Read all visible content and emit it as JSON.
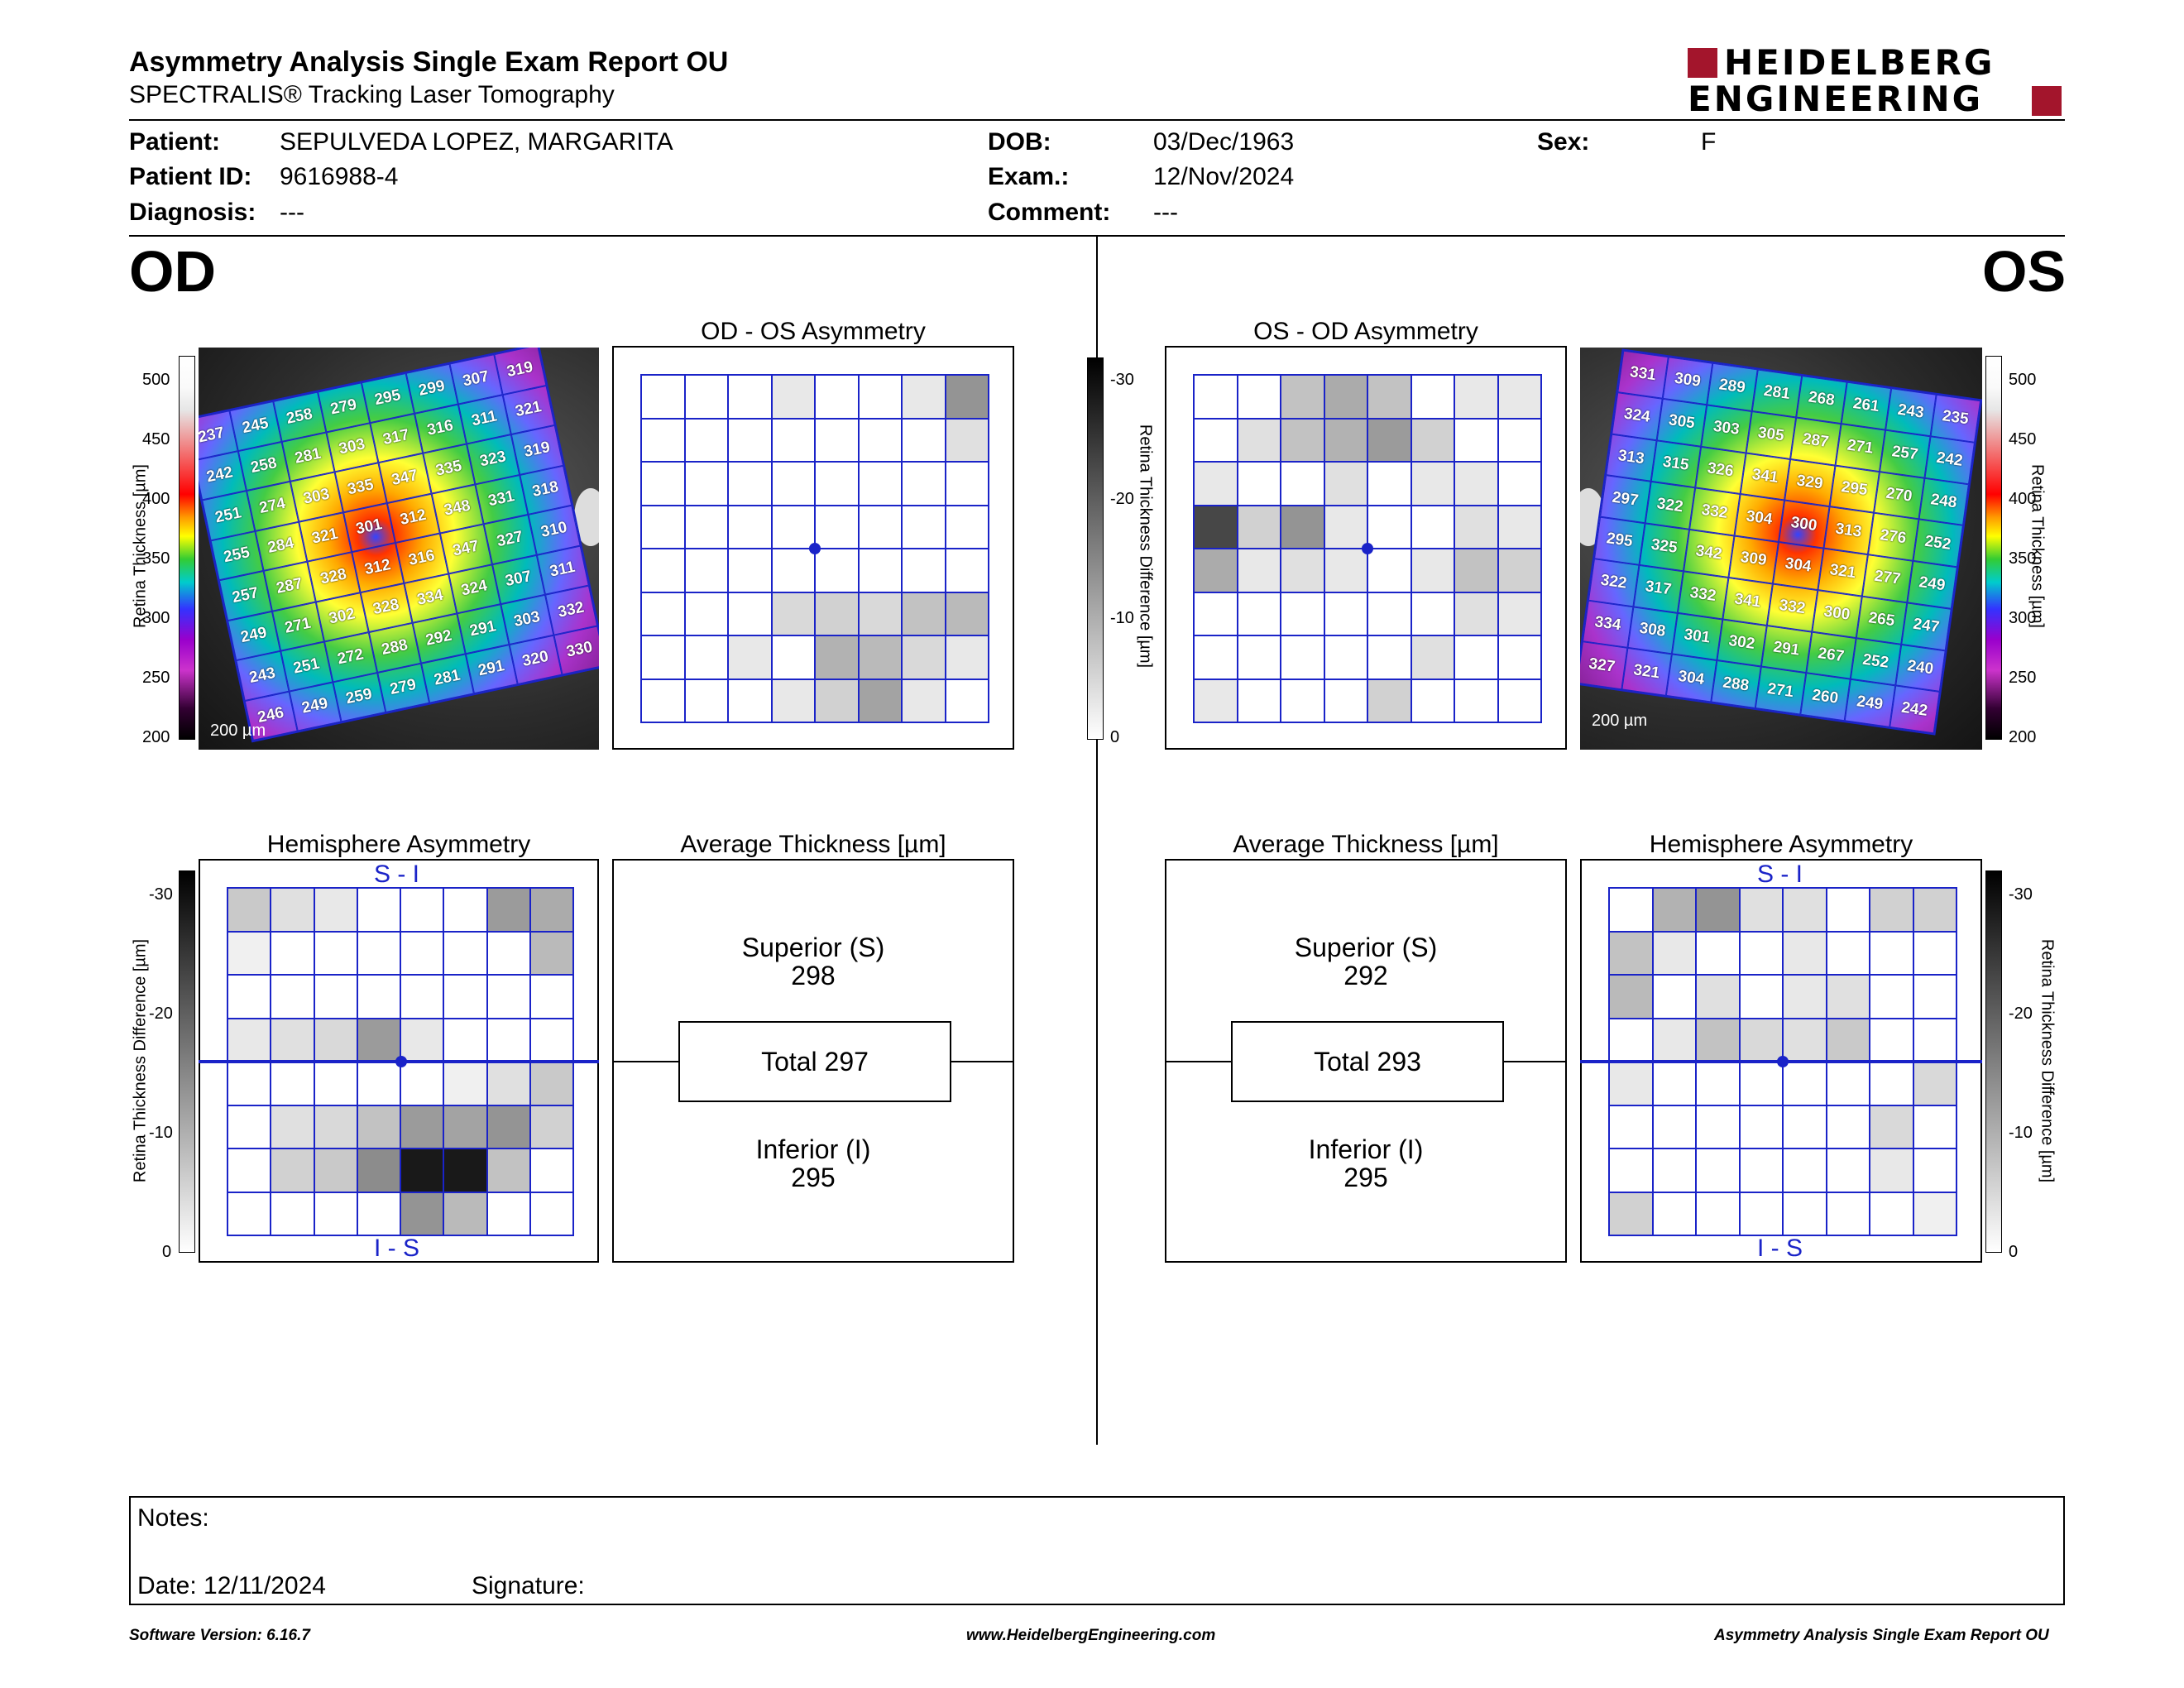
{
  "header": {
    "title": "Asymmetry Analysis Single Exam Report OU",
    "subtitle": "SPECTRALIS® Tracking Laser Tomography",
    "logo_line1": "HEIDELBERG",
    "logo_line2": "ENGINEERING",
    "logo_color": "#a3152c"
  },
  "patient": {
    "patient_label": "Patient:",
    "patient_value": "SEPULVEDA LOPEZ, MARGARITA",
    "id_label": "Patient ID:",
    "id_value": "9616988-4",
    "diag_label": "Diagnosis:",
    "diag_value": "---",
    "dob_label": "DOB:",
    "dob_value": "03/Dec/1963",
    "exam_label": "Exam.:",
    "exam_value": "12/Nov/2024",
    "comment_label": "Comment:",
    "comment_value": "---",
    "sex_label": "Sex:",
    "sex_value": "F"
  },
  "od": {
    "eye_label": "OD",
    "asym_title": "OD - OS Asymmetry",
    "hemi_title": "Hemisphere Asymmetry",
    "avg_title": "Average Thickness [µm]",
    "superior_label": "Superior (S)",
    "superior_value": "298",
    "total": "Total 297",
    "inferior_label": "Inferior (I)",
    "inferior_value": "295",
    "scale_label": "200 µm",
    "thickness_grid": [
      [
        "237",
        "245",
        "258",
        "279",
        "295",
        "299",
        "307",
        "319"
      ],
      [
        "242",
        "258",
        "281",
        "303",
        "317",
        "316",
        "311",
        "321"
      ],
      [
        "251",
        "274",
        "303",
        "335",
        "347",
        "335",
        "323",
        "319"
      ],
      [
        "255",
        "284",
        "321",
        "301",
        "312",
        "348",
        "331",
        "318"
      ],
      [
        "257",
        "287",
        "328",
        "312",
        "316",
        "347",
        "327",
        "310"
      ],
      [
        "249",
        "271",
        "302",
        "328",
        "334",
        "324",
        "307",
        "311"
      ],
      [
        "243",
        "251",
        "272",
        "288",
        "292",
        "291",
        "303",
        "332"
      ],
      [
        "246",
        "249",
        "259",
        "279",
        "281",
        "291",
        "320",
        "330"
      ]
    ],
    "asym_grid": [
      [
        0,
        0,
        0,
        3,
        0,
        0,
        3,
        14
      ],
      [
        0,
        0,
        0,
        0,
        0,
        0,
        0,
        4
      ],
      [
        0,
        0,
        0,
        0,
        0,
        0,
        0,
        0
      ],
      [
        0,
        0,
        0,
        0,
        0,
        0,
        0,
        0
      ],
      [
        0,
        0,
        0,
        0,
        0,
        0,
        0,
        0
      ],
      [
        0,
        0,
        0,
        5,
        6,
        5,
        8,
        9
      ],
      [
        0,
        0,
        3,
        0,
        10,
        9,
        5,
        3
      ],
      [
        0,
        0,
        0,
        3,
        6,
        12,
        3,
        0
      ]
    ],
    "hemi_grid": [
      [
        7,
        4,
        3,
        0,
        0,
        0,
        13,
        11
      ],
      [
        2,
        0,
        0,
        0,
        0,
        0,
        0,
        9
      ],
      [
        0,
        0,
        0,
        0,
        0,
        0,
        0,
        0
      ],
      [
        3,
        4,
        5,
        13,
        3,
        0,
        0,
        0
      ],
      [
        0,
        0,
        0,
        0,
        0,
        2,
        4,
        7
      ],
      [
        0,
        4,
        5,
        8,
        13,
        12,
        14,
        6
      ],
      [
        0,
        6,
        7,
        15,
        30,
        30,
        8,
        0
      ],
      [
        0,
        0,
        0,
        0,
        14,
        9,
        0,
        0
      ]
    ]
  },
  "os": {
    "eye_label": "OS",
    "asym_title": "OS - OD Asymmetry",
    "hemi_title": "Hemisphere Asymmetry",
    "avg_title": "Average Thickness [µm]",
    "superior_label": "Superior (S)",
    "superior_value": "292",
    "total": "Total 293",
    "inferior_label": "Inferior (I)",
    "inferior_value": "295",
    "scale_label": "200 µm",
    "thickness_grid": [
      [
        "331",
        "309",
        "289",
        "281",
        "268",
        "261",
        "243",
        "235"
      ],
      [
        "324",
        "305",
        "303",
        "305",
        "287",
        "271",
        "257",
        "242"
      ],
      [
        "313",
        "315",
        "326",
        "341",
        "329",
        "295",
        "270",
        "248"
      ],
      [
        "297",
        "322",
        "332",
        "304",
        "300",
        "313",
        "276",
        "252"
      ],
      [
        "295",
        "325",
        "342",
        "309",
        "304",
        "321",
        "277",
        "249"
      ],
      [
        "322",
        "317",
        "332",
        "341",
        "332",
        "300",
        "265",
        "247"
      ],
      [
        "334",
        "308",
        "301",
        "302",
        "291",
        "267",
        "252",
        "240"
      ],
      [
        "327",
        "321",
        "304",
        "288",
        "271",
        "260",
        "249",
        "242"
      ]
    ],
    "asym_grid": [
      [
        0,
        0,
        8,
        11,
        8,
        0,
        3,
        3
      ],
      [
        0,
        4,
        8,
        10,
        13,
        6,
        0,
        0
      ],
      [
        3,
        0,
        0,
        4,
        0,
        3,
        3,
        0
      ],
      [
        24,
        6,
        14,
        3,
        0,
        0,
        4,
        3
      ],
      [
        11,
        3,
        4,
        3,
        0,
        3,
        8,
        6
      ],
      [
        0,
        0,
        0,
        0,
        0,
        0,
        4,
        3
      ],
      [
        0,
        0,
        0,
        0,
        0,
        4,
        0,
        0
      ],
      [
        3,
        0,
        0,
        0,
        6,
        0,
        0,
        0
      ]
    ],
    "hemi_grid": [
      [
        0,
        10,
        14,
        4,
        4,
        0,
        6,
        6
      ],
      [
        8,
        3,
        0,
        0,
        3,
        0,
        0,
        0
      ],
      [
        9,
        0,
        4,
        0,
        3,
        4,
        0,
        0
      ],
      [
        0,
        3,
        8,
        5,
        4,
        7,
        0,
        0
      ],
      [
        3,
        0,
        0,
        0,
        0,
        0,
        0,
        5
      ],
      [
        0,
        0,
        0,
        0,
        0,
        0,
        5,
        0
      ],
      [
        0,
        0,
        0,
        0,
        0,
        0,
        3,
        0
      ],
      [
        6,
        0,
        0,
        0,
        0,
        0,
        0,
        2
      ]
    ]
  },
  "hemi_labels": {
    "top": "S - I",
    "bottom": "I - S"
  },
  "axes": {
    "thickness_label": "Retina  Thickness [µm]",
    "thickness_ticks": [
      "500",
      "450",
      "400",
      "350",
      "300",
      "250",
      "200"
    ],
    "diff_label": "Retina Thickness Difference [µm]",
    "diff_ticks": [
      "-30",
      "-20",
      "-10",
      "0"
    ]
  },
  "notes": {
    "notes_label": "Notes:",
    "date_label": "Date: 12/11/2024",
    "signature_label": "Signature:"
  },
  "footer": {
    "software": "Software Version: 6.16.7",
    "website": "www.HeidelbergEngineering.com",
    "report": "Asymmetry Analysis Single Exam Report OU"
  }
}
